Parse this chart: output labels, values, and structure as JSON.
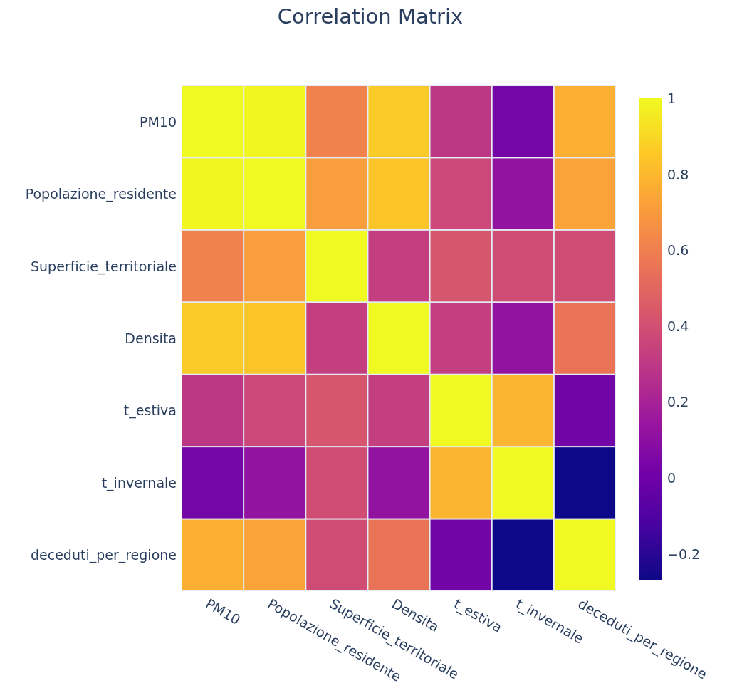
{
  "chart_data": {
    "type": "heatmap",
    "title": "Correlation Matrix",
    "categories": [
      "PM10",
      "Popolazione_residente",
      "Superficie_territoriale",
      "Densita",
      "t_estiva",
      "t_invernale",
      "deceduti_per_regione"
    ],
    "y_categories": [
      "PM10",
      "Popolazione_residente",
      "Superficie_territoriale",
      "Densita",
      "t_estiva",
      "t_invernale",
      "deceduti_per_regione"
    ],
    "cells": [
      [
        1,
        0.99,
        0.61,
        0.86,
        0.3,
        0.02,
        0.77
      ],
      [
        0.99,
        1,
        0.71,
        0.84,
        0.37,
        0.12,
        0.73
      ],
      [
        0.61,
        0.71,
        1,
        0.33,
        0.43,
        0.39,
        0.39
      ],
      [
        0.86,
        0.84,
        0.33,
        1,
        0.33,
        0.12,
        0.55
      ],
      [
        0.3,
        0.37,
        0.43,
        0.33,
        1,
        0.79,
        0.01
      ],
      [
        0.02,
        0.12,
        0.39,
        0.12,
        0.79,
        1,
        -0.27
      ],
      [
        0.77,
        0.73,
        0.39,
        0.55,
        0.01,
        -0.27,
        1
      ]
    ],
    "clim": [
      -0.27,
      1
    ],
    "cticks": [
      -0.2,
      0,
      0.2,
      0.4,
      0.6,
      0.8,
      1
    ]
  }
}
